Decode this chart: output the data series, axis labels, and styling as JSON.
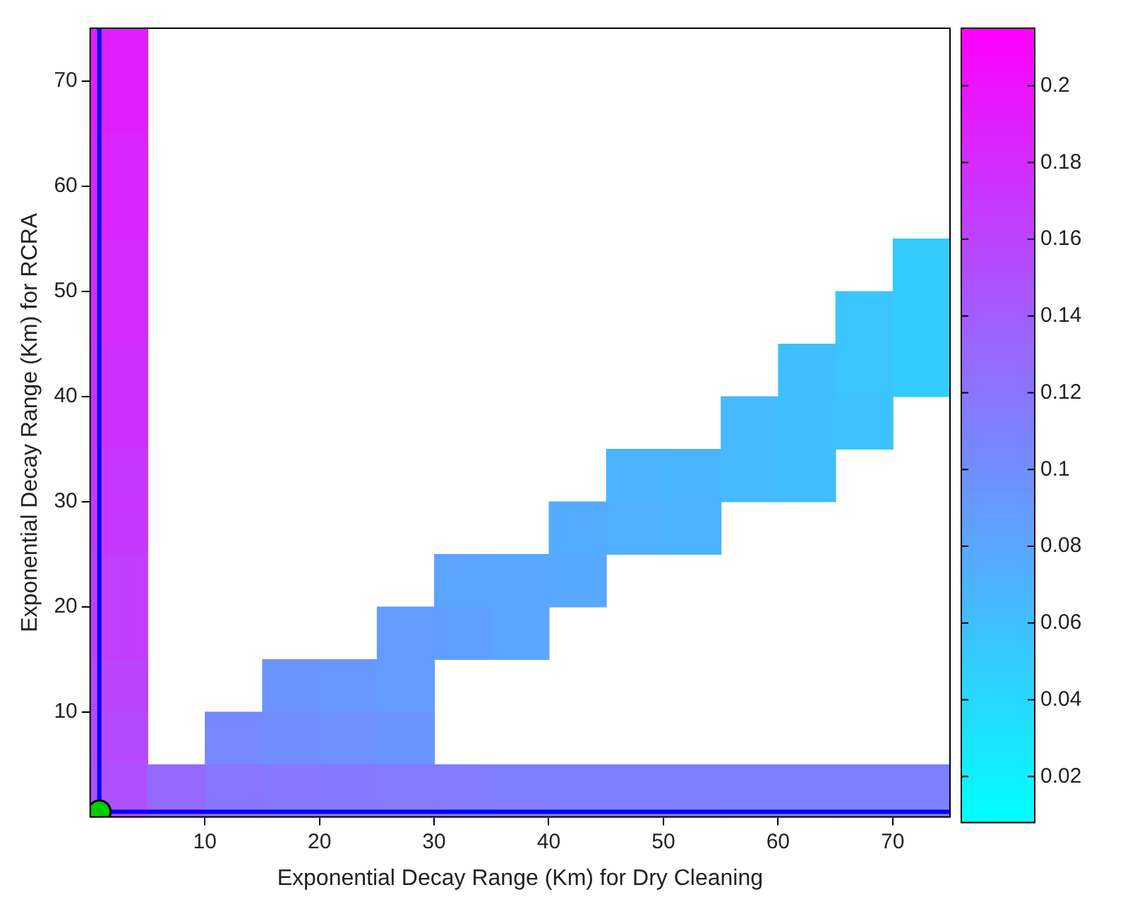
{
  "chart_data": {
    "type": "heatmap",
    "xlabel": "Exponential Decay Range (Km) for Dry Cleaning",
    "ylabel": "Exponential Decay Range (Km) for RCRA",
    "xlim": [
      0,
      75
    ],
    "ylim": [
      0,
      75
    ],
    "xticks": [
      10,
      20,
      30,
      40,
      50,
      60,
      70
    ],
    "yticks": [
      10,
      20,
      30,
      40,
      50,
      60,
      70
    ],
    "cells": [
      [
        0.19,
        null,
        null,
        null,
        null,
        null,
        null,
        null,
        null,
        null,
        null,
        null,
        null,
        null,
        null
      ],
      [
        0.19,
        null,
        null,
        null,
        null,
        null,
        null,
        null,
        null,
        null,
        null,
        null,
        null,
        null,
        null
      ],
      [
        0.185,
        null,
        null,
        null,
        null,
        null,
        null,
        null,
        null,
        null,
        null,
        null,
        null,
        null,
        null
      ],
      [
        0.185,
        null,
        null,
        null,
        null,
        null,
        null,
        null,
        null,
        null,
        null,
        null,
        null,
        null,
        null
      ],
      [
        0.18,
        null,
        null,
        null,
        null,
        null,
        null,
        null,
        null,
        null,
        null,
        null,
        null,
        null,
        0.05
      ],
      [
        0.18,
        null,
        null,
        null,
        null,
        null,
        null,
        null,
        null,
        null,
        null,
        null,
        null,
        0.055,
        0.05
      ],
      [
        0.175,
        null,
        null,
        null,
        null,
        null,
        null,
        null,
        null,
        null,
        null,
        null,
        0.06,
        0.055,
        0.05
      ],
      [
        0.175,
        null,
        null,
        null,
        null,
        null,
        null,
        null,
        null,
        null,
        null,
        0.065,
        0.06,
        0.058,
        null
      ],
      [
        0.17,
        null,
        null,
        null,
        null,
        null,
        null,
        null,
        null,
        0.07,
        0.068,
        0.065,
        0.062,
        null,
        null
      ],
      [
        0.17,
        null,
        null,
        null,
        null,
        null,
        null,
        null,
        0.075,
        0.072,
        0.07,
        null,
        null,
        null,
        null
      ],
      [
        0.165,
        null,
        null,
        null,
        null,
        null,
        0.082,
        0.08,
        0.078,
        null,
        null,
        null,
        null,
        null,
        null
      ],
      [
        0.165,
        null,
        null,
        null,
        null,
        0.088,
        0.085,
        0.082,
        null,
        null,
        null,
        null,
        null,
        null,
        null
      ],
      [
        0.16,
        null,
        null,
        0.095,
        0.092,
        0.09,
        null,
        null,
        null,
        null,
        null,
        null,
        null,
        null,
        null
      ],
      [
        0.155,
        null,
        0.105,
        0.1,
        0.098,
        0.095,
        null,
        null,
        null,
        null,
        null,
        null,
        null,
        null,
        null
      ],
      [
        0.15,
        0.13,
        0.12,
        0.118,
        0.116,
        0.115,
        0.114,
        0.113,
        0.112,
        0.112,
        0.111,
        0.11,
        0.11,
        0.11,
        0.11
      ]
    ],
    "clim": [
      0.008,
      0.215
    ],
    "cticks": [
      0.02,
      0.04,
      0.06,
      0.08,
      0.1,
      0.12,
      0.14,
      0.16,
      0.18,
      0.2
    ],
    "ref_lines": [
      {
        "axis": "x",
        "value": 0.8,
        "color": "#0000ff"
      },
      {
        "axis": "y",
        "value": 0.5,
        "color": "#0000ff"
      }
    ],
    "series": [
      {
        "type": "scatter",
        "color": "#00cc00",
        "x": [
          0.8
        ],
        "values": [
          0.5
        ]
      }
    ],
    "marker": "circle",
    "legend": false,
    "grid": false
  }
}
